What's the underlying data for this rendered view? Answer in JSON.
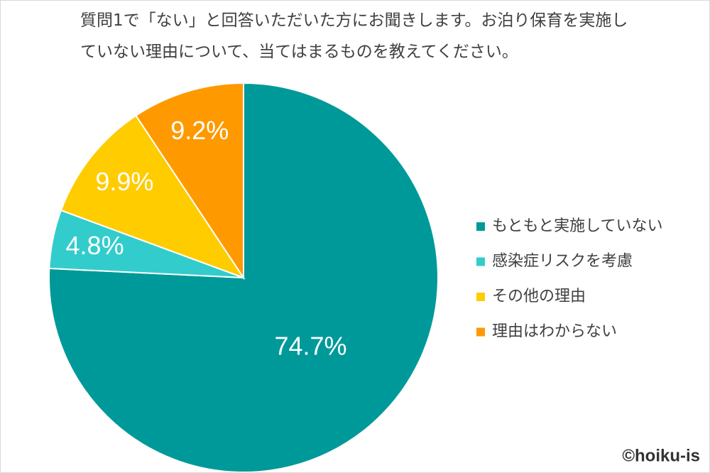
{
  "chart_data": {
    "type": "pie",
    "title": "質問1で「ない」と回答いただいた方にお聞きします。お泊り保育を実施していない理由について、当てはまるものを教えてください。",
    "categories": [
      "もともと実施していない",
      "感染症リスクを考慮",
      "その他の理由",
      "理由はわからない"
    ],
    "values": [
      74.7,
      4.8,
      9.9,
      9.2
    ],
    "value_labels": [
      "74.7%",
      "4.8%",
      "9.9%",
      "9.2%"
    ],
    "colors": [
      "#009999",
      "#33cccc",
      "#ffcc00",
      "#ff9900"
    ],
    "legend": "right",
    "source": "©hoiku-is"
  }
}
